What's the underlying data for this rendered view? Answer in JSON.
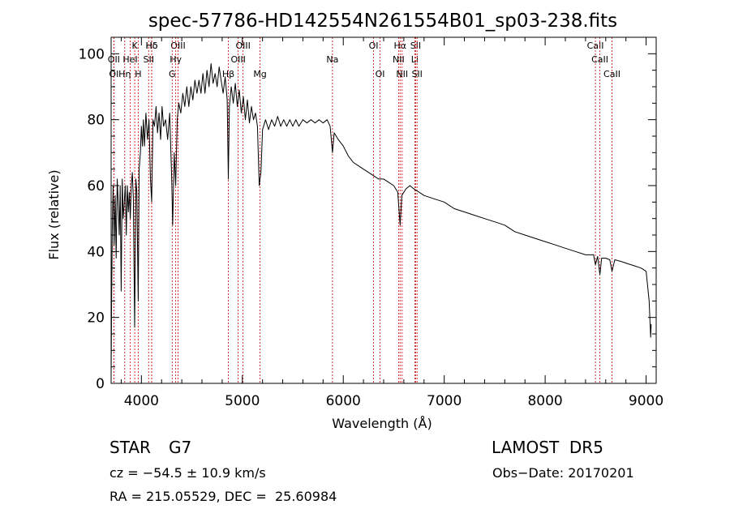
{
  "chart_data": {
    "type": "line",
    "title": "spec-57786-HD142554N261554B01_sp03-238.fits",
    "xlabel": "Wavelength (Å)",
    "ylabel": "Flux (relative)",
    "xlim": [
      3700,
      9100
    ],
    "ylim": [
      0,
      105
    ],
    "x_ticks": [
      4000,
      5000,
      6000,
      7000,
      8000,
      9000
    ],
    "y_ticks": [
      0,
      20,
      40,
      60,
      80,
      100
    ],
    "grid": false,
    "line_color": "#000000",
    "marker_color": "#cc0000",
    "series": [
      {
        "values": [
          [
            3700,
            2
          ],
          [
            3705,
            25
          ],
          [
            3712,
            48
          ],
          [
            3720,
            60
          ],
          [
            3730,
            42
          ],
          [
            3740,
            57
          ],
          [
            3750,
            38
          ],
          [
            3760,
            62
          ],
          [
            3770,
            55
          ],
          [
            3780,
            45
          ],
          [
            3790,
            60
          ],
          [
            3800,
            28
          ],
          [
            3810,
            62
          ],
          [
            3820,
            50
          ],
          [
            3830,
            55
          ],
          [
            3840,
            60
          ],
          [
            3850,
            45
          ],
          [
            3860,
            60
          ],
          [
            3870,
            52
          ],
          [
            3880,
            58
          ],
          [
            3890,
            50
          ],
          [
            3900,
            60
          ],
          [
            3910,
            64
          ],
          [
            3920,
            56
          ],
          [
            3933,
            17
          ],
          [
            3945,
            62
          ],
          [
            3955,
            58
          ],
          [
            3968,
            25
          ],
          [
            3978,
            65
          ],
          [
            3990,
            70
          ],
          [
            4000,
            78
          ],
          [
            4010,
            72
          ],
          [
            4020,
            80
          ],
          [
            4030,
            72
          ],
          [
            4045,
            82
          ],
          [
            4060,
            74
          ],
          [
            4075,
            80
          ],
          [
            4090,
            62
          ],
          [
            4102,
            55
          ],
          [
            4115,
            80
          ],
          [
            4130,
            78
          ],
          [
            4145,
            84
          ],
          [
            4160,
            76
          ],
          [
            4175,
            82
          ],
          [
            4190,
            74
          ],
          [
            4205,
            84
          ],
          [
            4220,
            78
          ],
          [
            4240,
            80
          ],
          [
            4260,
            74
          ],
          [
            4280,
            82
          ],
          [
            4300,
            62
          ],
          [
            4310,
            48
          ],
          [
            4325,
            70
          ],
          [
            4340,
            60
          ],
          [
            4355,
            80
          ],
          [
            4370,
            85
          ],
          [
            4390,
            82
          ],
          [
            4410,
            88
          ],
          [
            4430,
            84
          ],
          [
            4450,
            90
          ],
          [
            4470,
            84
          ],
          [
            4490,
            90
          ],
          [
            4510,
            86
          ],
          [
            4530,
            92
          ],
          [
            4550,
            88
          ],
          [
            4570,
            92
          ],
          [
            4590,
            88
          ],
          [
            4610,
            94
          ],
          [
            4630,
            88
          ],
          [
            4650,
            95
          ],
          [
            4670,
            90
          ],
          [
            4690,
            97
          ],
          [
            4710,
            91
          ],
          [
            4730,
            94
          ],
          [
            4750,
            90
          ],
          [
            4770,
            96
          ],
          [
            4790,
            92
          ],
          [
            4810,
            88
          ],
          [
            4830,
            93
          ],
          [
            4850,
            86
          ],
          [
            4861,
            62
          ],
          [
            4872,
            84
          ],
          [
            4890,
            90
          ],
          [
            4910,
            85
          ],
          [
            4930,
            91
          ],
          [
            4950,
            84
          ],
          [
            4970,
            89
          ],
          [
            4990,
            82
          ],
          [
            5010,
            87
          ],
          [
            5030,
            80
          ],
          [
            5050,
            86
          ],
          [
            5070,
            79
          ],
          [
            5090,
            84
          ],
          [
            5110,
            80
          ],
          [
            5130,
            82
          ],
          [
            5150,
            78
          ],
          [
            5167,
            60
          ],
          [
            5175,
            62
          ],
          [
            5184,
            64
          ],
          [
            5200,
            77
          ],
          [
            5230,
            80
          ],
          [
            5260,
            77
          ],
          [
            5290,
            80
          ],
          [
            5320,
            78
          ],
          [
            5350,
            81
          ],
          [
            5380,
            78
          ],
          [
            5410,
            80
          ],
          [
            5440,
            78
          ],
          [
            5470,
            80
          ],
          [
            5500,
            78
          ],
          [
            5530,
            80
          ],
          [
            5560,
            78
          ],
          [
            5600,
            80
          ],
          [
            5640,
            79
          ],
          [
            5680,
            80
          ],
          [
            5720,
            79
          ],
          [
            5760,
            80
          ],
          [
            5800,
            79
          ],
          [
            5840,
            80
          ],
          [
            5870,
            78
          ],
          [
            5893,
            70
          ],
          [
            5910,
            76
          ],
          [
            5950,
            74
          ],
          [
            6000,
            72
          ],
          [
            6050,
            69
          ],
          [
            6100,
            67
          ],
          [
            6150,
            66
          ],
          [
            6200,
            65
          ],
          [
            6250,
            64
          ],
          [
            6300,
            63
          ],
          [
            6350,
            62
          ],
          [
            6400,
            62
          ],
          [
            6450,
            61
          ],
          [
            6500,
            60
          ],
          [
            6540,
            58
          ],
          [
            6563,
            48
          ],
          [
            6580,
            57
          ],
          [
            6620,
            59
          ],
          [
            6660,
            60
          ],
          [
            6700,
            59
          ],
          [
            6750,
            58
          ],
          [
            6800,
            57
          ],
          [
            6900,
            56
          ],
          [
            7000,
            55
          ],
          [
            7100,
            53
          ],
          [
            7200,
            52
          ],
          [
            7300,
            51
          ],
          [
            7400,
            50
          ],
          [
            7500,
            49
          ],
          [
            7600,
            48
          ],
          [
            7700,
            46
          ],
          [
            7800,
            45
          ],
          [
            7900,
            44
          ],
          [
            8000,
            43
          ],
          [
            8100,
            42
          ],
          [
            8200,
            41
          ],
          [
            8300,
            40
          ],
          [
            8400,
            39
          ],
          [
            8480,
            39
          ],
          [
            8498,
            36
          ],
          [
            8520,
            38.5
          ],
          [
            8542,
            33
          ],
          [
            8560,
            38
          ],
          [
            8600,
            38
          ],
          [
            8640,
            37.5
          ],
          [
            8662,
            34
          ],
          [
            8690,
            37.5
          ],
          [
            8750,
            37
          ],
          [
            8800,
            36.5
          ],
          [
            8850,
            36
          ],
          [
            8900,
            35.5
          ],
          [
            8950,
            35
          ],
          [
            9000,
            34
          ],
          [
            9030,
            25
          ],
          [
            9045,
            14
          ],
          [
            9050,
            18
          ]
        ]
      }
    ],
    "line_markers": [
      {
        "label": "Hδ",
        "x": 4102,
        "row": 0
      },
      {
        "label": "K",
        "x": 3934,
        "row": 0
      },
      {
        "label": "Hδ",
        "x": 4102,
        "row": 0
      },
      {
        "label": "OIII",
        "x": 4363,
        "row": 0
      },
      {
        "label": "OIII",
        "x": 5007,
        "row": 0
      },
      {
        "label": "OI",
        "x": 6300,
        "row": 0
      },
      {
        "label": "Hα",
        "x": 6563,
        "row": 0
      },
      {
        "label": "SII",
        "x": 6717,
        "row": 0
      },
      {
        "label": "CaII",
        "x": 8498,
        "row": 0
      },
      {
        "label": "OII",
        "x": 3727,
        "row": 1
      },
      {
        "label": "HeI",
        "x": 3889,
        "row": 1
      },
      {
        "label": "SII",
        "x": 4072,
        "row": 1
      },
      {
        "label": "Hγ",
        "x": 4340,
        "row": 1
      },
      {
        "label": "OIII",
        "x": 4959,
        "row": 1
      },
      {
        "label": "Na",
        "x": 5893,
        "row": 1
      },
      {
        "label": "NII",
        "x": 6548,
        "row": 1
      },
      {
        "label": "Li",
        "x": 6708,
        "row": 1
      },
      {
        "label": "CaII",
        "x": 8542,
        "row": 1
      },
      {
        "label": "OI",
        "x": 3727,
        "row": 2
      },
      {
        "label": "Hη",
        "x": 3835,
        "row": 2
      },
      {
        "label": "H",
        "x": 3968,
        "row": 2
      },
      {
        "label": "G",
        "x": 4305,
        "row": 2
      },
      {
        "label": "Hβ",
        "x": 4861,
        "row": 2
      },
      {
        "label": "Mg",
        "x": 5175,
        "row": 2
      },
      {
        "label": "OI",
        "x": 6364,
        "row": 2
      },
      {
        "label": "NII",
        "x": 6583,
        "row": 2
      },
      {
        "label": "SII",
        "x": 6731,
        "row": 2
      },
      {
        "label": "CaII",
        "x": 8662,
        "row": 2
      }
    ]
  },
  "footer": {
    "object_class": "STAR",
    "subclass": "G7",
    "survey": "LAMOST  DR5",
    "redshift": "cz = −54.5 ± 10.9 km/s",
    "obs_date": "Obs−Date: 20170201",
    "coords": "RA = 215.05529, DEC =  25.60984"
  }
}
